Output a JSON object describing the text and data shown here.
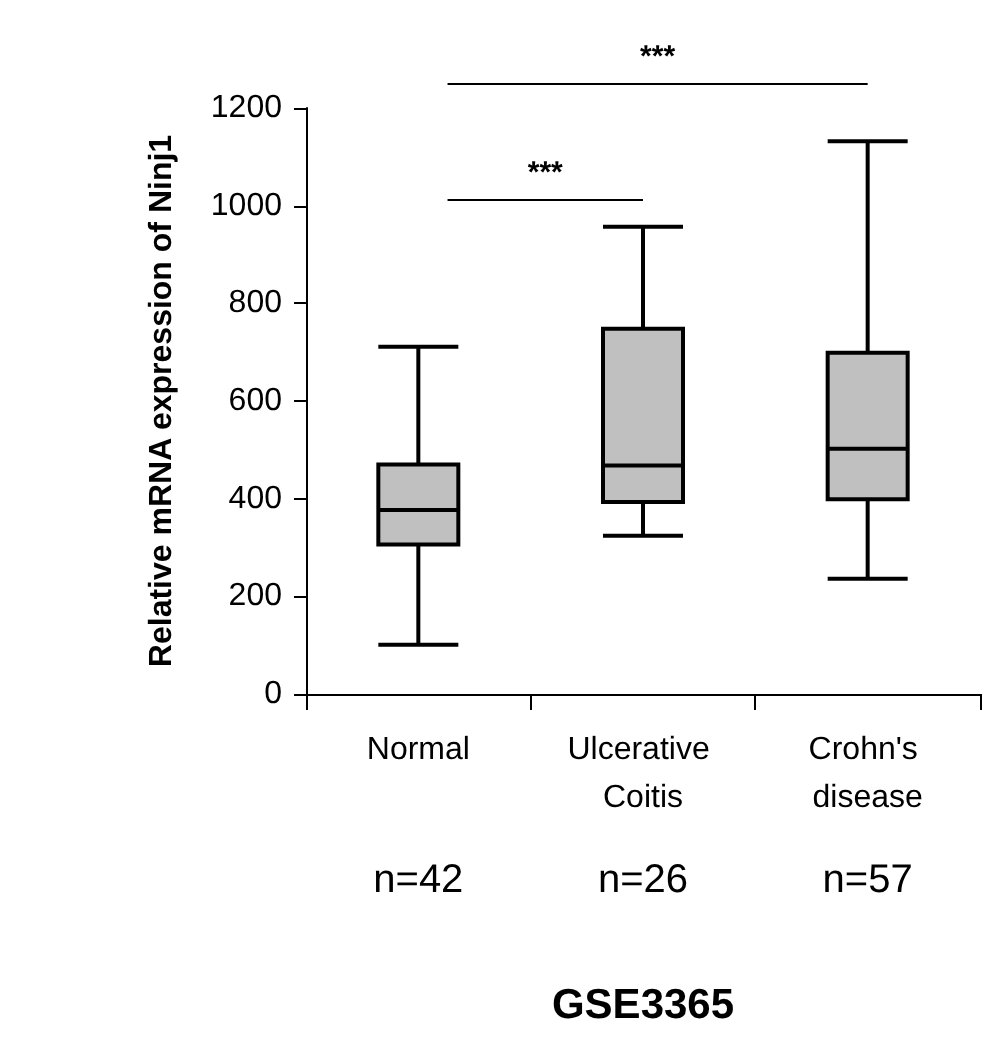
{
  "chart_data": {
    "type": "box",
    "categories": [
      "Normal",
      "Ulcerative Coitis",
      "Crohn's disease"
    ],
    "boxes": [
      {
        "low": 101,
        "q1": 306,
        "median": 377,
        "q3": 470,
        "high": 711
      },
      {
        "low": 324,
        "q1": 393,
        "median": 468,
        "q3": 748,
        "high": 957
      },
      {
        "low": 236,
        "q1": 399,
        "median": 502,
        "q3": 699,
        "high": 1132
      }
    ],
    "color": "#c0c0c0",
    "ylim": [
      0,
      1200
    ],
    "yticks": [
      0,
      200,
      400,
      600,
      800,
      1000,
      1200
    ],
    "ylabel": "Relative mRNA expression of Ninj1",
    "xlabel": "GSE3365",
    "grid": false,
    "annotations": [
      "***",
      "***",
      "n=42",
      "n=26",
      "n=57"
    ]
  }
}
